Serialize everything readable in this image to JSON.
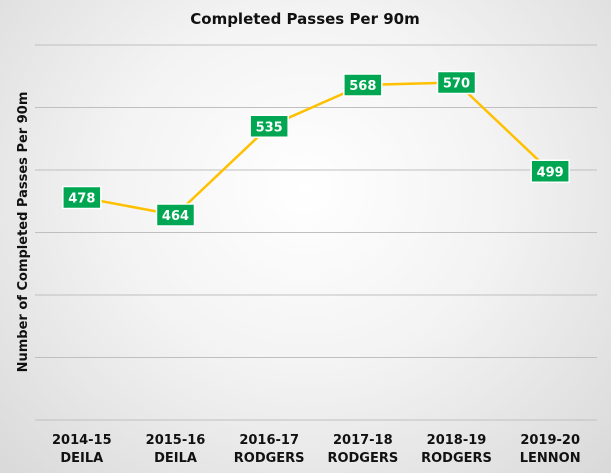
{
  "colors": {
    "line": "#FFC000",
    "label_box": "#00A651",
    "label_text": "#FFFFFF",
    "grid": "#BFBFBF"
  },
  "chart_data": {
    "type": "line",
    "title": "Completed Passes Per 90m",
    "xlabel": "",
    "ylabel": "Number of Completed Passes Per 90m",
    "categories": [
      "2014-15 DEILA",
      "2015-16 DEILA",
      "2016-17 RODGERS",
      "2017-18 RODGERS",
      "2018-19 RODGERS",
      "2019-20 LENNON"
    ],
    "category_lines": [
      [
        "2014-15",
        "DEILA"
      ],
      [
        "2015-16",
        "DEILA"
      ],
      [
        "2016-17",
        "RODGERS"
      ],
      [
        "2017-18",
        "RODGERS"
      ],
      [
        "2018-19",
        "RODGERS"
      ],
      [
        "2019-20",
        "LENNON"
      ]
    ],
    "series": [
      {
        "values": [
          478,
          464,
          535,
          568,
          570,
          499
        ]
      }
    ],
    "ylim": [
      300,
      600
    ],
    "y_ticks": [
      300,
      350,
      400,
      450,
      500,
      550,
      600
    ],
    "grid": true,
    "y_tick_labels_shown": false,
    "data_labels": true,
    "legend": "none"
  }
}
